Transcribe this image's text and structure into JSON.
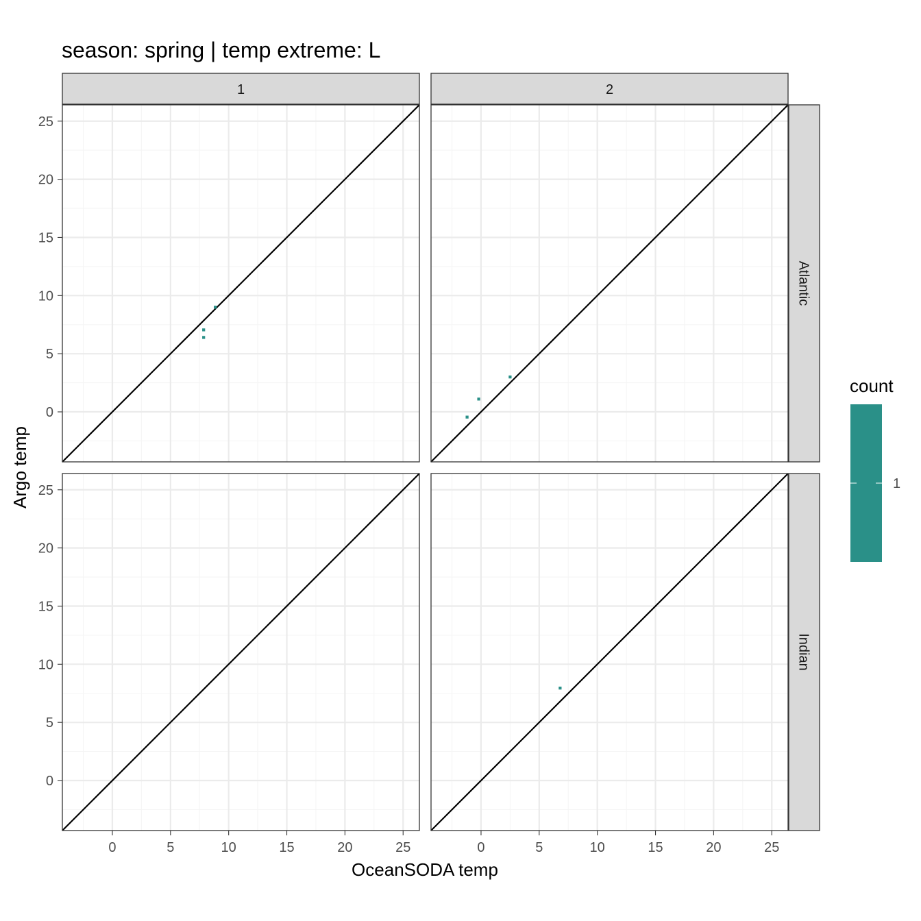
{
  "chart_data": {
    "type": "heatmap",
    "title": "season: spring | temp extreme: L",
    "xlabel": "OceanSODA temp",
    "ylabel": "Argo temp",
    "xlim": [
      -4.3,
      26.4
    ],
    "ylim": [
      -4.3,
      26.4
    ],
    "x_ticks": [
      0,
      5,
      10,
      15,
      20,
      25
    ],
    "y_ticks": [
      0,
      5,
      10,
      15,
      20,
      25
    ],
    "grid": true,
    "identity_line": true,
    "col_facets": [
      "1",
      "2"
    ],
    "row_facets": [
      "Atlantic",
      "Indian"
    ],
    "legend": {
      "title": "count",
      "labels": [
        "1"
      ],
      "placement": "right",
      "color": "#2a9088"
    },
    "bin_size": 0.25,
    "panels": [
      {
        "row": "Atlantic",
        "col": "1",
        "cells": [
          [
            8.85,
            9.0
          ],
          [
            7.85,
            7.05
          ],
          [
            7.85,
            6.4
          ]
        ]
      },
      {
        "row": "Atlantic",
        "col": "2",
        "cells": [
          [
            2.5,
            3.0
          ],
          [
            -0.2,
            1.1
          ],
          [
            -1.2,
            -0.45
          ]
        ]
      },
      {
        "row": "Indian",
        "col": "1",
        "cells": []
      },
      {
        "row": "Indian",
        "col": "2",
        "cells": [
          [
            6.8,
            7.95
          ]
        ]
      }
    ]
  },
  "colors": {
    "fill": "#2a9088",
    "strip_bg": "#d9d9d9",
    "grid_major": "#ebebeb",
    "grid_minor": "#f5f5f5",
    "panel_border": "#333333"
  }
}
